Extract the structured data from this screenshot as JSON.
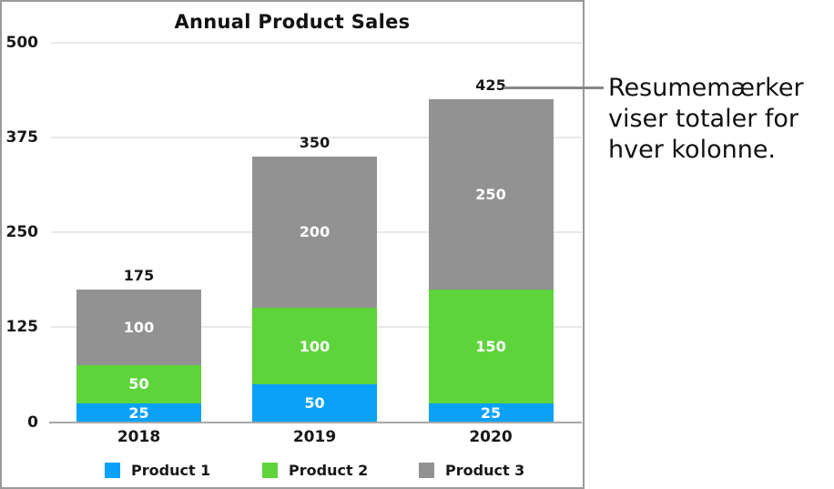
{
  "chart_data": {
    "type": "bar",
    "stacked": true,
    "title": "Annual Product Sales",
    "categories": [
      "2018",
      "2019",
      "2020"
    ],
    "series": [
      {
        "name": "Product 1",
        "color": "#0aa1fb",
        "values": [
          25,
          50,
          25
        ]
      },
      {
        "name": "Product 2",
        "color": "#5ed43b",
        "values": [
          50,
          100,
          150
        ]
      },
      {
        "name": "Product 3",
        "color": "#929292",
        "values": [
          100,
          200,
          250
        ]
      }
    ],
    "totals": [
      175,
      350,
      425
    ],
    "y_ticks": [
      0,
      125,
      250,
      375,
      500
    ],
    "ylim": [
      0,
      500
    ],
    "xlabel": "",
    "ylabel": "",
    "grid": true,
    "legend_position": "bottom",
    "summary_label_color": "#171717",
    "segment_label_color": "#ffffff"
  },
  "callout": {
    "text": "Resumemærker viser totaler for hver kolonne.",
    "lines": [
      "Resumemærker",
      "viser totaler for",
      "hver kolonne."
    ],
    "points_to_total": "425"
  }
}
